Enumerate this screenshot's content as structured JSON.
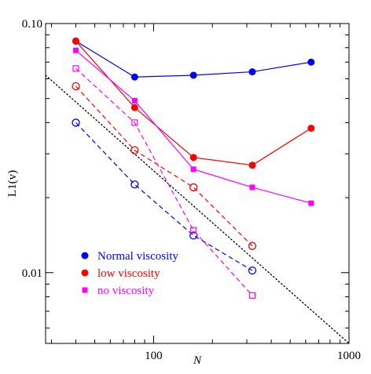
{
  "chart_data": {
    "type": "line",
    "title": "",
    "xlabel": "N",
    "ylabel": "L1(v)",
    "xscale": "log",
    "yscale": "log",
    "xlim": [
      28,
      1000
    ],
    "ylim": [
      0.0052,
      0.1
    ],
    "x_ticks": [
      {
        "value": 100,
        "label": "100"
      },
      {
        "value": 1000,
        "label": "1000"
      }
    ],
    "y_ticks": [
      {
        "value": 0.01,
        "label": "0.01"
      },
      {
        "value": 0.1,
        "label": "0.10"
      }
    ],
    "grid": false,
    "legend_position": "bottom-left",
    "series": [
      {
        "name": "Normal viscosity",
        "group": "normal",
        "color": "#0000ff",
        "line": "solid",
        "marker": "filled-circle",
        "x": [
          40,
          80,
          160,
          320,
          640
        ],
        "y": [
          0.085,
          0.061,
          0.062,
          0.064,
          0.07
        ]
      },
      {
        "name": "low viscosity",
        "group": "low",
        "color": "#ff0000",
        "line": "solid",
        "marker": "filled-circle",
        "x": [
          40,
          80,
          160,
          320,
          640
        ],
        "y": [
          0.085,
          0.046,
          0.029,
          0.027,
          0.038
        ]
      },
      {
        "name": "no viscosity",
        "group": "none",
        "color": "#ff00ff",
        "line": "solid",
        "marker": "filled-square",
        "x": [
          40,
          80,
          160,
          320,
          640
        ],
        "y": [
          0.078,
          0.049,
          0.026,
          0.022,
          0.019
        ]
      },
      {
        "group": "normal",
        "color": "#0000ff",
        "line": "dashed",
        "marker": "open-circle",
        "x": [
          40,
          80,
          160,
          320
        ],
        "y": [
          0.04,
          0.0226,
          0.0141,
          0.0102
        ]
      },
      {
        "group": "low",
        "color": "#ff0000",
        "line": "dashed",
        "marker": "open-circle",
        "x": [
          40,
          80,
          160,
          320
        ],
        "y": [
          0.056,
          0.031,
          0.022,
          0.0128
        ]
      },
      {
        "group": "none",
        "color": "#ff00ff",
        "line": "dashed",
        "marker": "open-square",
        "x": [
          40,
          80,
          160,
          320
        ],
        "y": [
          0.066,
          0.04,
          0.0148,
          0.0081
        ]
      }
    ],
    "reference_line": {
      "color": "#000000",
      "line": "dotted",
      "x": [
        28,
        1000
      ],
      "y": [
        0.062,
        0.0052
      ]
    },
    "legend": [
      {
        "label": "Normal viscosity",
        "color": "#0000ff",
        "marker": "filled-circle"
      },
      {
        "label": "low viscosity",
        "color": "#ff0000",
        "marker": "filled-circle"
      },
      {
        "label": "no viscosity",
        "color": "#ff00ff",
        "marker": "filled-square"
      }
    ]
  }
}
